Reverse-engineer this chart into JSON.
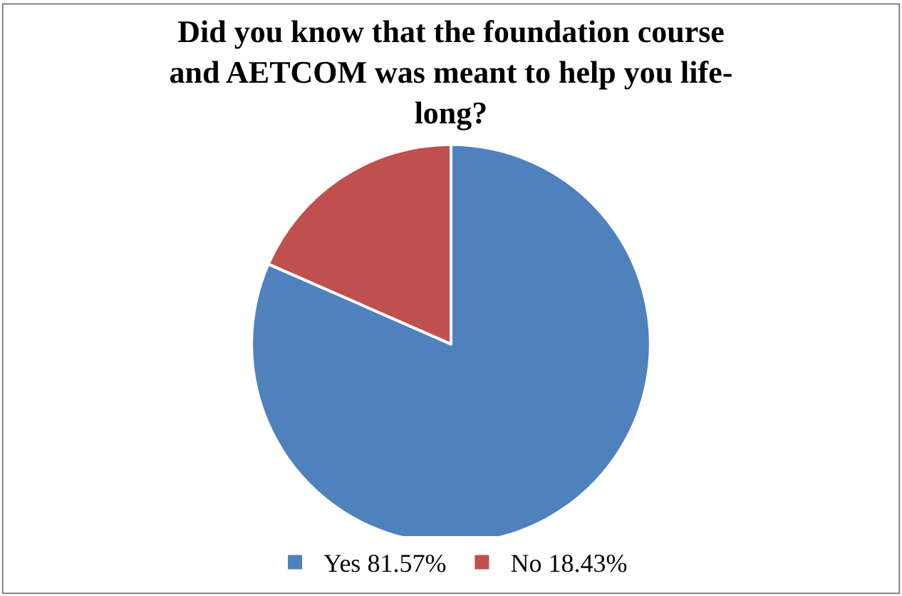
{
  "chart_data": {
    "type": "pie",
    "title": "Did you know that the foundation course\nand AETCOM was meant to help you life-\nlong?",
    "categories": [
      "Yes 81.57%",
      "No 18.43%"
    ],
    "values": [
      81.57,
      18.43
    ],
    "colors": [
      "#4f81bd",
      "#c0504d"
    ],
    "legend": "bottom"
  }
}
